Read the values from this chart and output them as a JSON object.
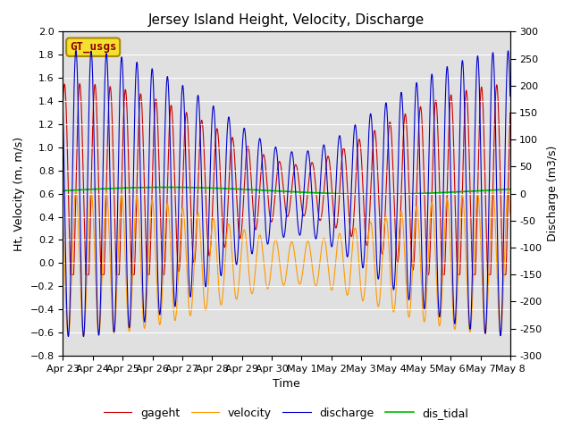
{
  "title": "Jersey Island Height, Velocity, Discharge",
  "xlabel": "Time",
  "ylabel_left": "Ht, Velocity (m, m/s)",
  "ylabel_right": "Discharge (m3/s)",
  "ylim_left": [
    -0.8,
    2.0
  ],
  "ylim_right": [
    -300,
    300
  ],
  "yticks_left": [
    -0.8,
    -0.6,
    -0.4,
    -0.2,
    0.0,
    0.2,
    0.4,
    0.6,
    0.8,
    1.0,
    1.2,
    1.4,
    1.6,
    1.8,
    2.0
  ],
  "yticks_right": [
    -300,
    -250,
    -200,
    -150,
    -100,
    -50,
    0,
    50,
    100,
    150,
    200,
    250,
    300
  ],
  "colors": {
    "gageht": "#cc0000",
    "velocity": "#ff9900",
    "discharge": "#0000cc",
    "dis_tidal": "#00bb00"
  },
  "gt_usgs_label": "GT_usgs",
  "background_color": "#e0e0e0",
  "num_days": 15,
  "tidal_period_hours": 12.42,
  "tidal_period2_hours": 12.0,
  "gageht_base": 0.63,
  "gageht_amp1": 0.57,
  "gageht_amp2": 0.35,
  "velocity_amp": 0.63,
  "discharge_amp": 265,
  "dis_tidal_base": 0.625,
  "dis_tidal_slow_amp": 0.03,
  "dis_tidal_period_days": 14.0,
  "title_fontsize": 11,
  "axis_fontsize": 9,
  "tick_fontsize": 8,
  "legend_fontsize": 9,
  "linewidth_main": 0.8,
  "linewidth_tidal": 1.2
}
